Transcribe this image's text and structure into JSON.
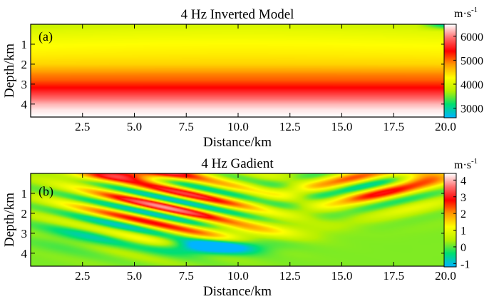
{
  "chart_data": [
    {
      "type": "heatmap",
      "panel_label": "(a)",
      "title": "4 Hz Inverted Model",
      "xlabel": "Distance/km",
      "ylabel": "Depth/km",
      "x_ticks": [
        "2.5",
        "5.0",
        "7.5",
        "10.0",
        "12.5",
        "15.0",
        "17.5",
        "20.0"
      ],
      "x_tick_values": [
        2.5,
        5.0,
        7.5,
        10.0,
        12.5,
        15.0,
        17.5,
        20.0
      ],
      "y_ticks": [
        "1",
        "2",
        "3",
        "4"
      ],
      "y_tick_values": [
        1,
        2,
        3,
        4
      ],
      "xlim": [
        0,
        20
      ],
      "ylim": [
        0,
        4.65
      ],
      "colorbar": {
        "unit_base": "m·s",
        "unit_exp": "-1",
        "range": [
          2600,
          6500
        ],
        "ticks": [
          "3000",
          "4000",
          "5000",
          "6000"
        ],
        "tick_values": [
          3000,
          4000,
          5000,
          6000
        ],
        "colors": [
          "#00b4ff",
          "#00e070",
          "#b8f000",
          "#ffff00",
          "#ff9900",
          "#ff0000",
          "#ff6e6e",
          "#ffffff"
        ]
      },
      "profile": {
        "description": "velocity vs depth (approx., laterally near-uniform)",
        "depth_km": [
          0.0,
          0.3,
          0.7,
          1.0,
          1.5,
          2.0,
          2.5,
          2.8,
          3.2,
          3.6,
          4.0,
          4.3,
          4.65
        ],
        "velocity": [
          3800,
          4000,
          4150,
          4250,
          4350,
          4500,
          4900,
          5050,
          5400,
          5800,
          6200,
          6400,
          6500
        ]
      }
    },
    {
      "type": "heatmap",
      "panel_label": "(b)",
      "title": "4 Hz Gadient",
      "xlabel": "Distance/km",
      "ylabel": "Depth/km",
      "x_ticks": [
        "2.5",
        "5.0",
        "7.5",
        "10.0",
        "12.5",
        "15.0",
        "17.5",
        "20.0"
      ],
      "x_tick_values": [
        2.5,
        5.0,
        7.5,
        10.0,
        12.5,
        15.0,
        17.5,
        20.0
      ],
      "y_ticks": [
        "1",
        "2",
        "3",
        "4"
      ],
      "y_tick_values": [
        1,
        2,
        3,
        4
      ],
      "xlim": [
        0,
        20
      ],
      "ylim": [
        0,
        4.65
      ],
      "colorbar": {
        "unit_base": "m·s",
        "unit_exp": "-1",
        "range": [
          -1.2,
          4.4
        ],
        "ticks": [
          "-1",
          "0",
          "1",
          "2",
          "3",
          "4"
        ],
        "tick_values": [
          -1,
          0,
          1,
          2,
          3,
          4
        ],
        "colors": [
          "#00b4ff",
          "#00e070",
          "#b8f000",
          "#ffff00",
          "#ff9900",
          "#ff0000",
          "#ff6e6e",
          "#ffffff"
        ]
      }
    }
  ]
}
